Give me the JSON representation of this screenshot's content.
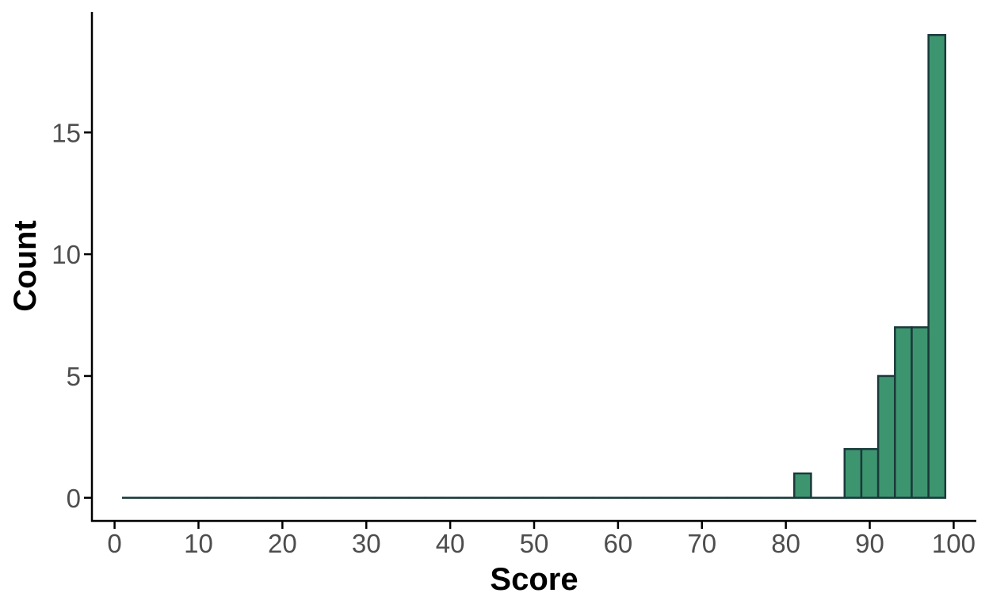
{
  "chart_data": {
    "type": "bar",
    "title": "",
    "xlabel": "Score",
    "ylabel": "Count",
    "xlim": [
      -2.7,
      102.7
    ],
    "ylim": [
      -0.95,
      19.95
    ],
    "x_ticks": [
      0,
      10,
      20,
      30,
      40,
      50,
      60,
      70,
      80,
      90,
      100
    ],
    "y_ticks": [
      0,
      5,
      10,
      15
    ],
    "bin_width": 2,
    "bin_edges": [
      1,
      3,
      5,
      7,
      9,
      11,
      13,
      15,
      17,
      19,
      21,
      23,
      25,
      27,
      29,
      31,
      33,
      35,
      37,
      39,
      41,
      43,
      45,
      47,
      49,
      51,
      53,
      55,
      57,
      59,
      61,
      63,
      65,
      67,
      69,
      71,
      73,
      75,
      77,
      79,
      81,
      83,
      85,
      87,
      89,
      91,
      93,
      95,
      97,
      99
    ],
    "counts": [
      0,
      0,
      0,
      0,
      0,
      0,
      0,
      0,
      0,
      0,
      0,
      0,
      0,
      0,
      0,
      0,
      0,
      0,
      0,
      0,
      0,
      0,
      0,
      0,
      0,
      0,
      0,
      0,
      0,
      0,
      0,
      0,
      0,
      0,
      0,
      0,
      0,
      0,
      0,
      0,
      1,
      0,
      0,
      2,
      2,
      5,
      7,
      7,
      19
    ],
    "grid": false,
    "legend": "none",
    "colors": {
      "fill": "#3d9570",
      "outline": "#1a3a3a",
      "axis": "#000000",
      "tick_text": "#4d4d4d"
    }
  }
}
